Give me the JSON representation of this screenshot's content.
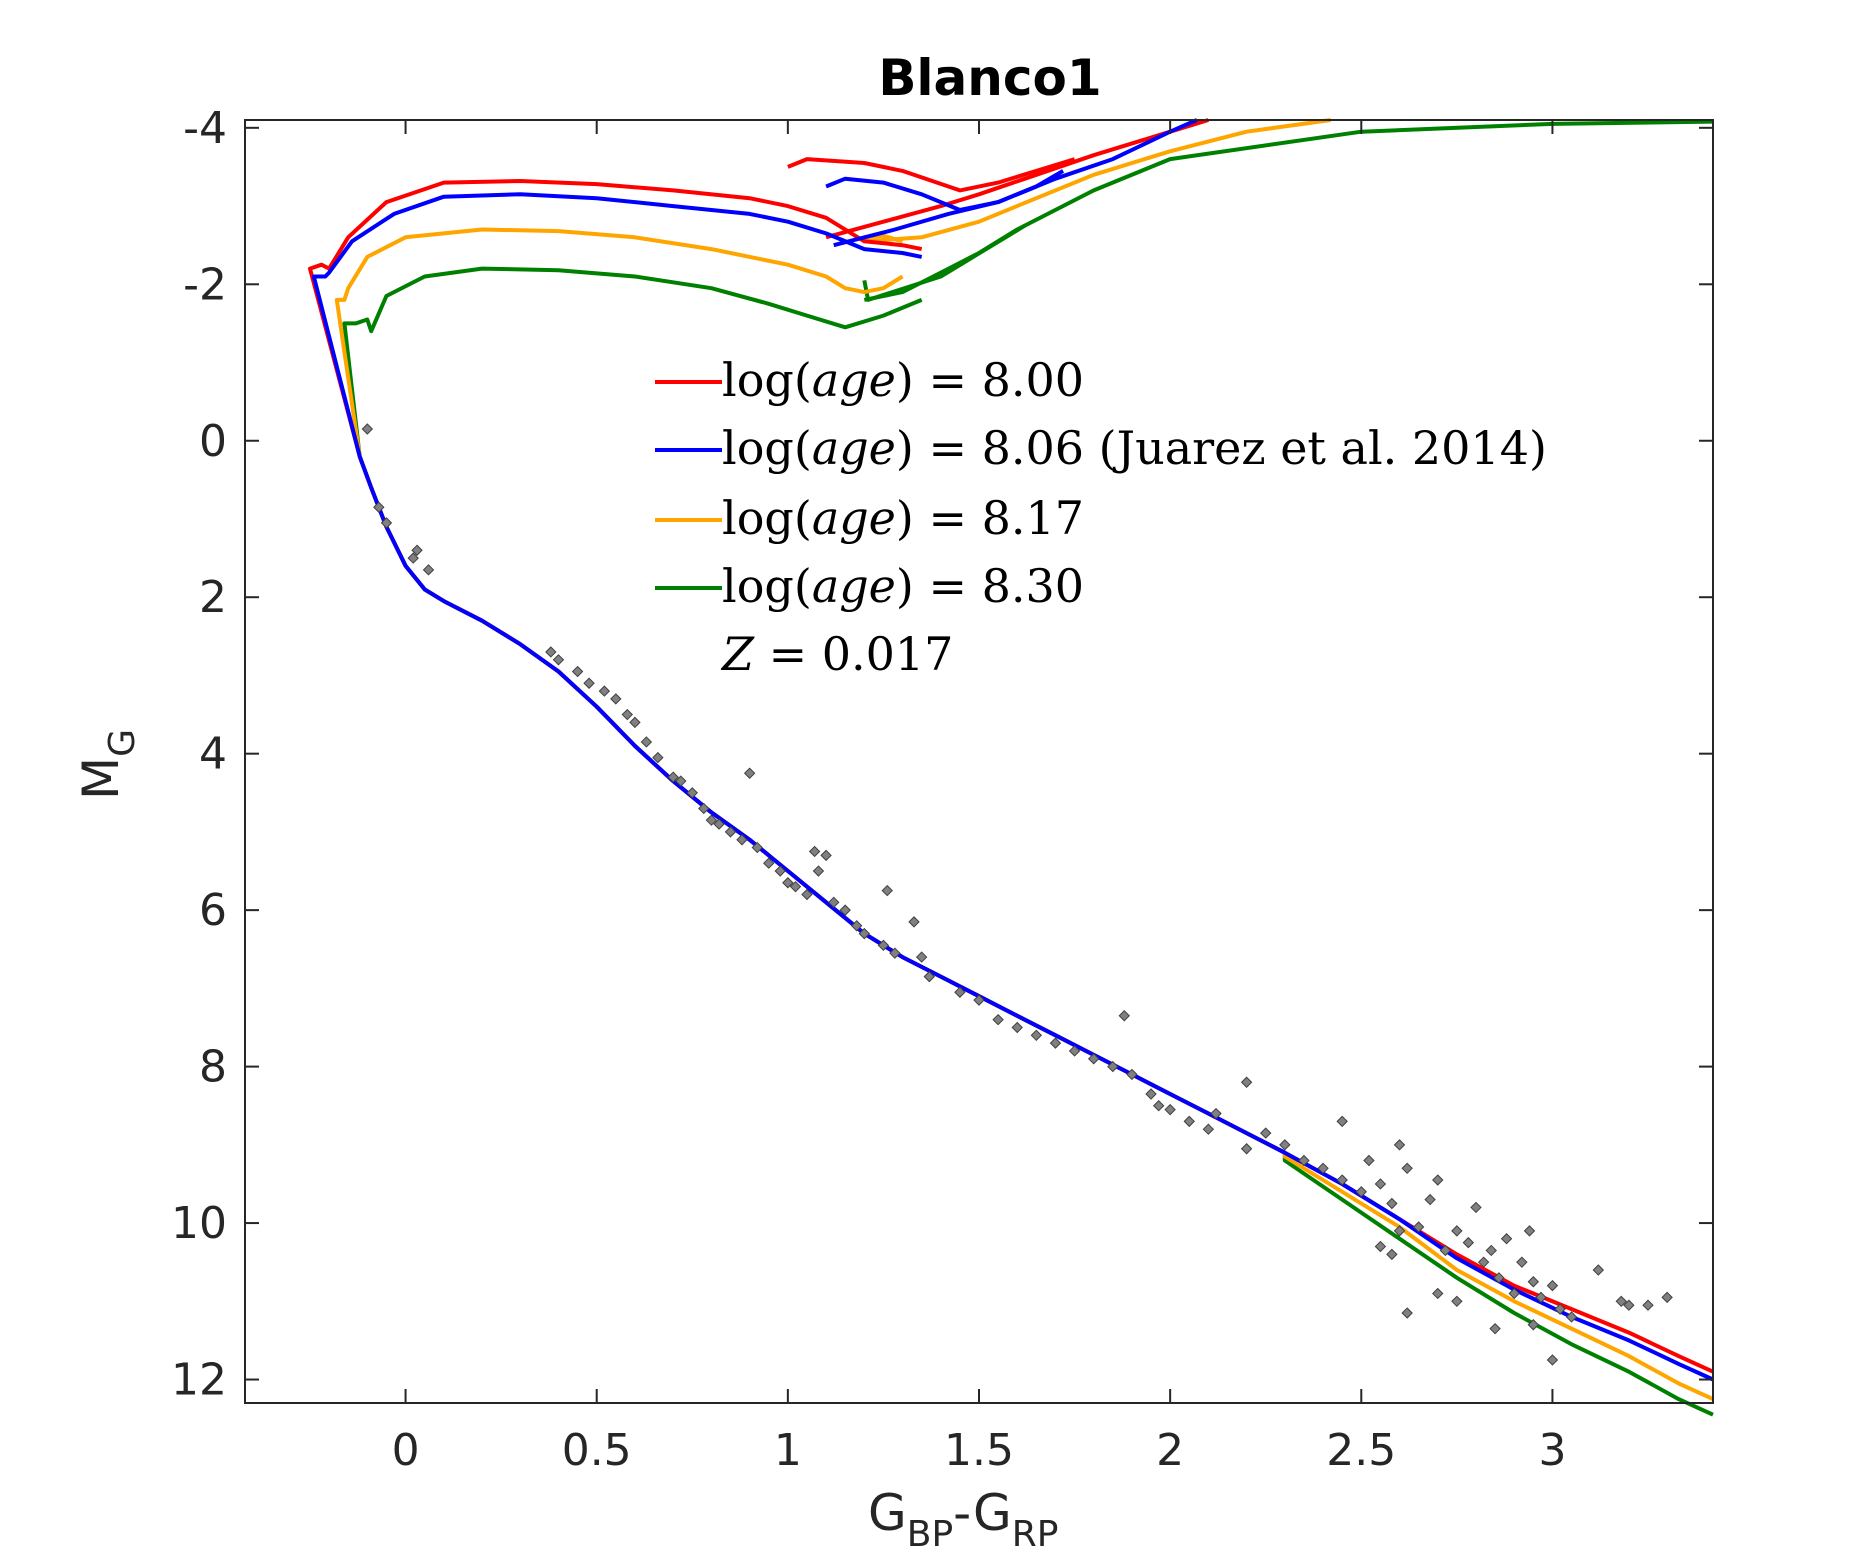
{
  "chart_data": {
    "type": "line",
    "title": "Blanco1",
    "xlabel": {
      "main": "G",
      "sub1": "BP",
      "dash": "-",
      "main2": "G",
      "sub2": "RP"
    },
    "ylabel": {
      "main": "M",
      "sub": "G"
    },
    "xlim": [
      -0.42,
      3.42
    ],
    "ylim": [
      12.3,
      -4.1
    ],
    "y_reversed": true,
    "x_ticks": [
      0,
      0.5,
      1,
      1.5,
      2,
      2.5,
      3
    ],
    "x_tick_labels": [
      "0",
      "0.5",
      "1",
      "1.5",
      "2",
      "2.5",
      "3"
    ],
    "y_ticks": [
      -4,
      -2,
      0,
      2,
      4,
      6,
      8,
      10,
      12
    ],
    "y_tick_labels": [
      "-4",
      "-2",
      "0",
      "2",
      "4",
      "6",
      "8",
      "10",
      "12"
    ],
    "grid": false,
    "legend_position": "center",
    "legend": {
      "entries": [
        {
          "prefix": "log(",
          "italic": "age",
          "suffix": ") = 8.00",
          "color": "#ff0000"
        },
        {
          "prefix": "log(",
          "italic": "age",
          "suffix": ") = 8.06 (Juarez et al. 2014)",
          "color": "#0000ff"
        },
        {
          "prefix": "log(",
          "italic": "age",
          "suffix": ") = 8.17",
          "color": "#ffa500"
        },
        {
          "prefix": "log(",
          "italic": "age",
          "suffix": ") = 8.30",
          "color": "#008000"
        }
      ],
      "extra": {
        "italic": "Z",
        "suffix": " = 0.017"
      }
    },
    "main_sequence": {
      "x": [
        -0.12,
        -0.09,
        -0.05,
        0.0,
        0.05,
        0.1,
        0.2,
        0.3,
        0.4,
        0.5,
        0.6,
        0.7,
        0.8,
        0.9,
        1.0,
        1.1,
        1.2,
        1.3,
        1.4,
        1.5,
        1.6,
        1.7,
        1.8,
        1.9,
        2.0,
        2.1,
        2.2,
        2.3
      ],
      "y": [
        0.2,
        0.6,
        1.1,
        1.6,
        1.9,
        2.05,
        2.3,
        2.6,
        2.95,
        3.4,
        3.9,
        4.35,
        4.75,
        5.1,
        5.5,
        5.9,
        6.3,
        6.6,
        6.85,
        7.1,
        7.35,
        7.6,
        7.85,
        8.1,
        8.35,
        8.6,
        8.85,
        9.1
      ]
    },
    "series": [
      {
        "name": "log(age) = 8.00",
        "color": "#ff0000",
        "branch": {
          "x": [
            -0.25,
            -0.22,
            -0.2,
            -0.15,
            -0.05,
            0.1,
            0.3,
            0.5,
            0.7,
            0.9,
            1.0,
            1.1,
            1.2,
            1.3,
            1.35
          ],
          "y": [
            -2.2,
            -2.25,
            -2.2,
            -2.6,
            -3.05,
            -3.3,
            -3.32,
            -3.28,
            -3.2,
            -3.1,
            -3.0,
            -2.85,
            -2.55,
            -2.5,
            -2.45
          ]
        },
        "loop": {
          "x": [
            1.1,
            1.25,
            1.4,
            1.5,
            1.65,
            1.8,
            2.0,
            2.1
          ],
          "y": [
            -2.6,
            -2.8,
            -3.0,
            -3.15,
            -3.4,
            -3.65,
            -3.95,
            -4.1
          ]
        },
        "clump": {
          "x": [
            1.0,
            1.05,
            1.2,
            1.3,
            1.45,
            1.55,
            1.65,
            1.75
          ],
          "y": [
            -3.5,
            -3.6,
            -3.55,
            -3.45,
            -3.2,
            -3.3,
            -3.45,
            -3.6
          ]
        },
        "lower": {
          "x": [
            2.3,
            2.45,
            2.6,
            2.75,
            2.9,
            3.05,
            3.2,
            3.33,
            3.42
          ],
          "y": [
            9.1,
            9.5,
            9.95,
            10.4,
            10.8,
            11.1,
            11.4,
            11.7,
            11.9
          ]
        }
      },
      {
        "name": "log(age) = 8.06 (Juarez et al. 2014)",
        "color": "#0000ff",
        "branch": {
          "x": [
            -0.24,
            -0.21,
            -0.2,
            -0.14,
            -0.03,
            0.1,
            0.3,
            0.5,
            0.7,
            0.9,
            1.0,
            1.1,
            1.2,
            1.3,
            1.35
          ],
          "y": [
            -2.1,
            -2.1,
            -2.15,
            -2.55,
            -2.9,
            -3.12,
            -3.15,
            -3.1,
            -3.0,
            -2.9,
            -2.8,
            -2.65,
            -2.45,
            -2.4,
            -2.35
          ]
        },
        "loop": {
          "x": [
            1.12,
            1.28,
            1.42,
            1.55,
            1.7,
            1.85,
            2.0,
            2.07
          ],
          "y": [
            -2.5,
            -2.7,
            -2.9,
            -3.05,
            -3.35,
            -3.6,
            -3.95,
            -4.1
          ]
        },
        "clump": {
          "x": [
            1.1,
            1.15,
            1.25,
            1.35,
            1.45,
            1.55,
            1.65,
            1.72
          ],
          "y": [
            -3.25,
            -3.35,
            -3.3,
            -3.15,
            -2.95,
            -3.05,
            -3.25,
            -3.45
          ]
        },
        "lower": {
          "x": [
            2.3,
            2.45,
            2.6,
            2.75,
            2.9,
            3.05,
            3.2,
            3.33,
            3.42
          ],
          "y": [
            9.1,
            9.5,
            9.95,
            10.45,
            10.85,
            11.2,
            11.5,
            11.8,
            12.0
          ]
        }
      },
      {
        "name": "log(age) = 8.17",
        "color": "#ffa500",
        "branch": {
          "x": [
            -0.18,
            -0.16,
            -0.15,
            -0.1,
            0.0,
            0.2,
            0.4,
            0.6,
            0.8,
            1.0,
            1.1,
            1.15,
            1.2,
            1.25,
            1.3
          ],
          "y": [
            -1.8,
            -1.8,
            -1.95,
            -2.35,
            -2.6,
            -2.7,
            -2.68,
            -2.6,
            -2.45,
            -2.25,
            -2.1,
            -1.95,
            -1.9,
            -1.95,
            -2.1
          ]
        },
        "loop": {
          "x": [
            1.2,
            1.35,
            1.5,
            1.65,
            1.8,
            2.0,
            2.2,
            2.42
          ],
          "y": [
            -2.55,
            -2.6,
            -2.8,
            -3.1,
            -3.4,
            -3.7,
            -3.95,
            -4.1
          ]
        },
        "clump": {
          "x": [
            1.2,
            1.25,
            1.3
          ],
          "y": [
            -2.6,
            -2.62,
            -2.55
          ]
        },
        "lower": {
          "x": [
            2.3,
            2.45,
            2.6,
            2.75,
            2.9,
            3.05,
            3.2,
            3.33,
            3.42
          ],
          "y": [
            9.15,
            9.6,
            10.05,
            10.6,
            11.0,
            11.35,
            11.7,
            12.05,
            12.25
          ]
        }
      },
      {
        "name": "log(age) = 8.30",
        "color": "#008000",
        "branch": {
          "x": [
            -0.16,
            -0.13,
            -0.1,
            -0.09,
            -0.05,
            0.05,
            0.2,
            0.4,
            0.6,
            0.8,
            0.95,
            1.05,
            1.15,
            1.25,
            1.35
          ],
          "y": [
            -1.5,
            -1.5,
            -1.55,
            -1.4,
            -1.85,
            -2.1,
            -2.2,
            -2.18,
            -2.1,
            -1.95,
            -1.75,
            -1.6,
            -1.45,
            -1.6,
            -1.8
          ]
        },
        "loop": {
          "x": [
            1.2,
            1.3,
            1.4,
            1.5,
            1.6,
            1.8,
            2.0,
            2.5,
            3.0,
            3.42
          ],
          "y": [
            -1.8,
            -1.9,
            -2.15,
            -2.4,
            -2.7,
            -3.2,
            -3.6,
            -3.95,
            -4.05,
            -4.08
          ]
        },
        "clump": {
          "x": [
            1.2,
            1.21,
            1.4,
            1.62
          ],
          "y": [
            -2.05,
            -1.8,
            -2.1,
            -2.75
          ]
        },
        "lower": {
          "x": [
            2.3,
            2.45,
            2.6,
            2.75,
            2.9,
            3.05,
            3.2,
            3.33,
            3.42
          ],
          "y": [
            9.2,
            9.7,
            10.2,
            10.7,
            11.15,
            11.55,
            11.9,
            12.25,
            12.45
          ]
        }
      }
    ],
    "stars": [
      [
        -0.1,
        -0.15
      ],
      [
        -0.07,
        0.85
      ],
      [
        -0.05,
        1.05
      ],
      [
        0.02,
        1.5
      ],
      [
        0.03,
        1.4
      ],
      [
        0.06,
        1.65
      ],
      [
        0.38,
        2.7
      ],
      [
        0.4,
        2.8
      ],
      [
        0.45,
        2.95
      ],
      [
        0.48,
        3.1
      ],
      [
        0.52,
        3.2
      ],
      [
        0.55,
        3.3
      ],
      [
        0.58,
        3.5
      ],
      [
        0.6,
        3.6
      ],
      [
        0.63,
        3.85
      ],
      [
        0.66,
        4.05
      ],
      [
        0.7,
        4.3
      ],
      [
        0.72,
        4.35
      ],
      [
        0.75,
        4.5
      ],
      [
        0.78,
        4.7
      ],
      [
        0.8,
        4.85
      ],
      [
        0.82,
        4.9
      ],
      [
        0.85,
        5.0
      ],
      [
        0.88,
        5.1
      ],
      [
        0.9,
        4.25
      ],
      [
        0.92,
        5.2
      ],
      [
        0.95,
        5.4
      ],
      [
        0.98,
        5.5
      ],
      [
        1.0,
        5.65
      ],
      [
        1.02,
        5.7
      ],
      [
        1.05,
        5.8
      ],
      [
        1.07,
        5.25
      ],
      [
        1.08,
        5.5
      ],
      [
        1.1,
        5.3
      ],
      [
        1.12,
        5.9
      ],
      [
        1.15,
        6.0
      ],
      [
        1.18,
        6.2
      ],
      [
        1.2,
        6.3
      ],
      [
        1.25,
        6.45
      ],
      [
        1.26,
        5.75
      ],
      [
        1.28,
        6.55
      ],
      [
        1.33,
        6.15
      ],
      [
        1.35,
        6.6
      ],
      [
        1.37,
        6.85
      ],
      [
        1.45,
        7.05
      ],
      [
        1.5,
        7.15
      ],
      [
        1.55,
        7.4
      ],
      [
        1.6,
        7.5
      ],
      [
        1.65,
        7.6
      ],
      [
        1.7,
        7.7
      ],
      [
        1.75,
        7.8
      ],
      [
        1.8,
        7.9
      ],
      [
        1.85,
        8.0
      ],
      [
        1.88,
        7.35
      ],
      [
        1.9,
        8.1
      ],
      [
        1.95,
        8.35
      ],
      [
        1.97,
        8.5
      ],
      [
        2.0,
        8.55
      ],
      [
        2.05,
        8.7
      ],
      [
        2.1,
        8.8
      ],
      [
        2.12,
        8.6
      ],
      [
        2.2,
        8.2
      ],
      [
        2.2,
        9.05
      ],
      [
        2.25,
        8.85
      ],
      [
        2.3,
        9.0
      ],
      [
        2.35,
        9.2
      ],
      [
        2.4,
        9.3
      ],
      [
        2.45,
        9.45
      ],
      [
        2.45,
        8.7
      ],
      [
        2.5,
        9.6
      ],
      [
        2.52,
        9.2
      ],
      [
        2.55,
        9.5
      ],
      [
        2.58,
        9.75
      ],
      [
        2.6,
        9.0
      ],
      [
        2.62,
        9.3
      ],
      [
        2.65,
        10.05
      ],
      [
        2.68,
        9.7
      ],
      [
        2.7,
        9.45
      ],
      [
        2.72,
        10.35
      ],
      [
        2.75,
        10.1
      ],
      [
        2.78,
        10.25
      ],
      [
        2.8,
        9.8
      ],
      [
        2.82,
        10.5
      ],
      [
        2.84,
        10.35
      ],
      [
        2.86,
        10.7
      ],
      [
        2.88,
        10.2
      ],
      [
        2.9,
        10.9
      ],
      [
        2.92,
        10.5
      ],
      [
        2.94,
        10.1
      ],
      [
        2.95,
        10.75
      ],
      [
        2.97,
        10.95
      ],
      [
        3.0,
        10.8
      ],
      [
        3.02,
        11.1
      ],
      [
        3.05,
        11.2
      ],
      [
        3.0,
        11.75
      ],
      [
        2.62,
        11.15
      ],
      [
        3.12,
        10.6
      ],
      [
        3.18,
        11.0
      ],
      [
        3.2,
        11.05
      ],
      [
        3.25,
        11.05
      ],
      [
        3.3,
        10.95
      ],
      [
        2.95,
        11.3
      ],
      [
        2.7,
        10.9
      ],
      [
        2.85,
        11.35
      ],
      [
        2.75,
        11.0
      ],
      [
        2.58,
        10.4
      ],
      [
        2.6,
        10.1
      ],
      [
        2.55,
        10.3
      ]
    ]
  }
}
